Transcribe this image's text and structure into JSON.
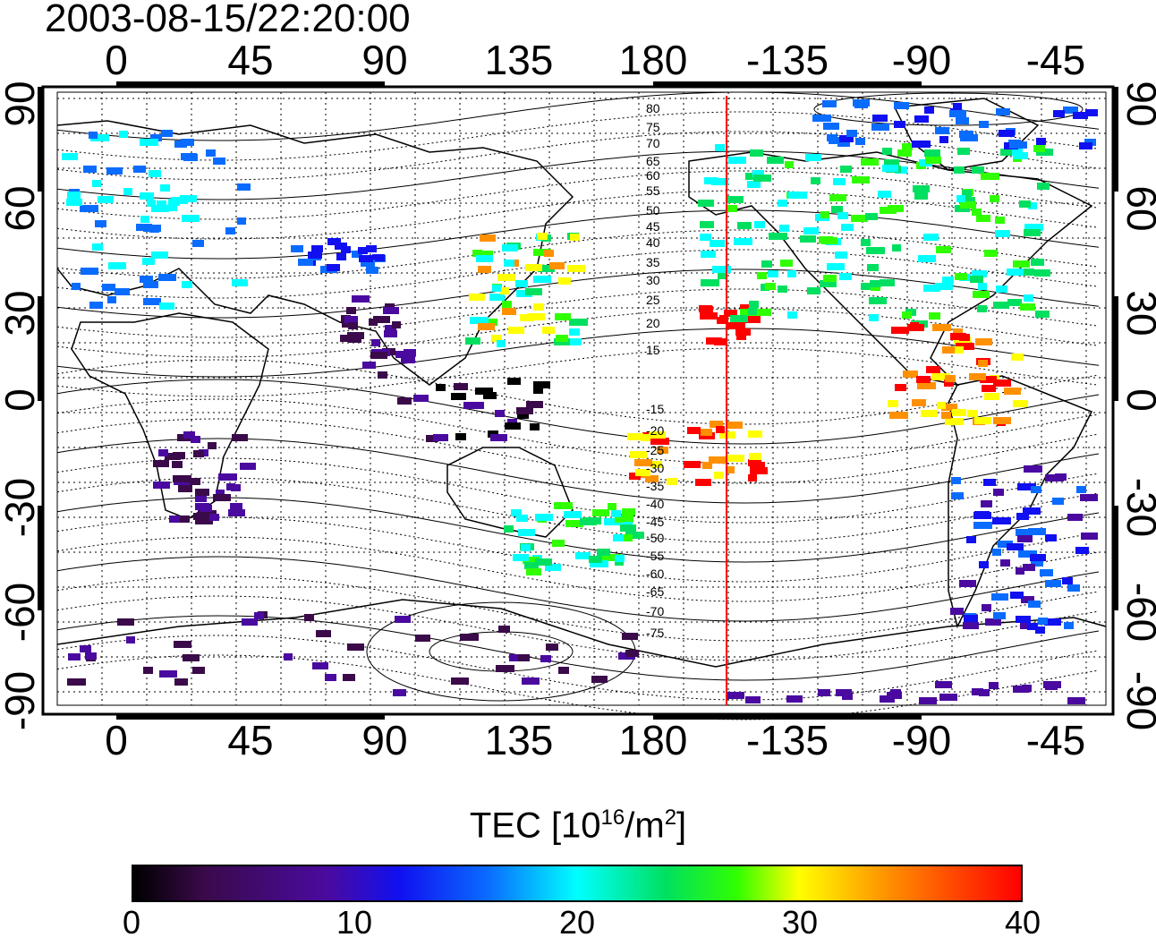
{
  "timestamp": "2003-08-15/22:20:00",
  "axes": {
    "lon_ticks": [
      "0",
      "45",
      "90",
      "135",
      "180",
      "-135",
      "-90",
      "-45"
    ],
    "lat_ticks": [
      "90",
      "60",
      "30",
      "0",
      "-30",
      "-60",
      "-90"
    ],
    "lon_range": [
      -20,
      340
    ],
    "lat_range": [
      -90,
      90
    ]
  },
  "contour_labels": [
    "80",
    "75",
    "70",
    "65",
    "60",
    "55",
    "50",
    "45",
    "40",
    "35",
    "30",
    "25",
    "20",
    "15",
    "-15",
    "-20",
    "-25",
    "-30",
    "-35",
    "-40",
    "-45",
    "-50",
    "-55",
    "-60",
    "-65",
    "-70",
    "-75"
  ],
  "terminator_line": {
    "longitude": -155,
    "color": "#ff0000"
  },
  "colorbar": {
    "title_main": "TEC  [10",
    "title_sup1": "16",
    "title_mid": "/m",
    "title_sup2": "2",
    "title_end": "]",
    "ticks": [
      "0",
      "10",
      "20",
      "30",
      "40"
    ],
    "range": [
      0,
      40
    ],
    "colors": [
      "#000000",
      "#3a0a4a",
      "#4a0aa0",
      "#1010f0",
      "#0a6cff",
      "#00ffff",
      "#00e060",
      "#30ff00",
      "#ffff00",
      "#ff9000",
      "#ff0000"
    ]
  }
}
